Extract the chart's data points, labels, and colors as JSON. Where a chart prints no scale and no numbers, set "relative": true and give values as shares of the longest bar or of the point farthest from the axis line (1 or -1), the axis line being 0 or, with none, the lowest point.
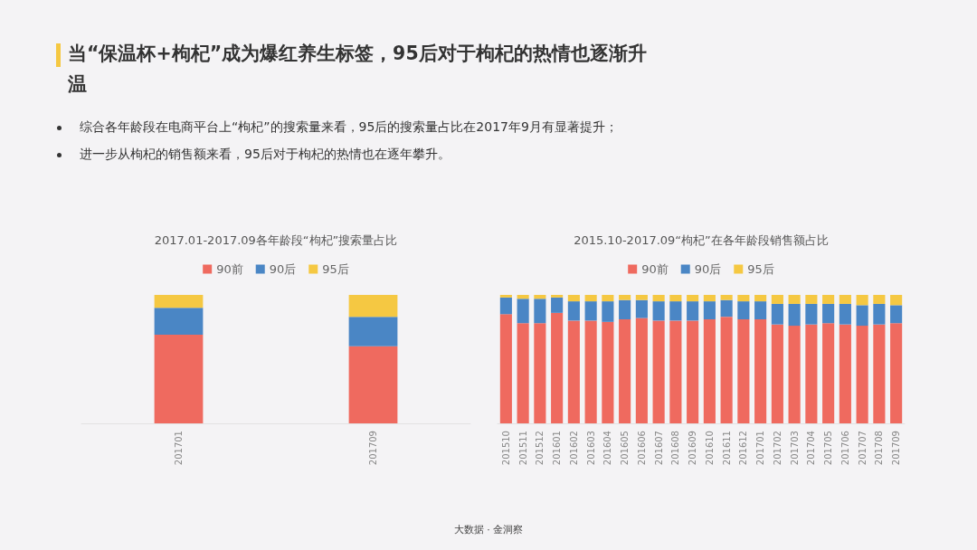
{
  "chart_data": [
    {
      "type": "other",
      "title": "当“保温杯+枸杞”成为爆红养生标签，95后对于枸杞的热情也逐渐升温",
      "annotations": [
        "综合各年龄段在电商平台上“枸杞”的搜索量来看，95后的搜索量占比在2017年9月有显著提升；",
        "进一步从枸杞的销售额来看，95后对于枸杞的热情也在逐年攀升。",
        "大数据 · 金洞察"
      ]
    },
    {
      "type": "bar",
      "title": "2017.01-2017.09各年龄段“枸杞”搜索量占比",
      "relative": true,
      "stacked": true,
      "legend": "top",
      "tick_labels": "x",
      "categories": [
        "201701",
        "201709"
      ],
      "series": [
        {
          "name": "90前",
          "color": "#ef6a5f",
          "values": [
            0.69,
            0.6
          ]
        },
        {
          "name": "90后",
          "color": "#4a86c5",
          "values": [
            0.21,
            0.23
          ]
        },
        {
          "name": "95后",
          "color": "#f5c842",
          "values": [
            0.1,
            0.17
          ]
        }
      ]
    },
    {
      "type": "bar",
      "title": "2015.10-2017.09“枸杞”在各年龄段销售额占比",
      "relative": true,
      "stacked": true,
      "legend": "top",
      "tick_labels": "x",
      "categories": [
        "201510",
        "201511",
        "201512",
        "201601",
        "201602",
        "201603",
        "201604",
        "201605",
        "201606",
        "201607",
        "201608",
        "201609",
        "201610",
        "201611",
        "201612",
        "201701",
        "201702",
        "201703",
        "201704",
        "201705",
        "201706",
        "201707",
        "201708",
        "201709"
      ],
      "series": [
        {
          "name": "90前",
          "color": "#ef6a5f",
          "values": [
            0.85,
            0.78,
            0.78,
            0.86,
            0.8,
            0.8,
            0.79,
            0.81,
            0.82,
            0.8,
            0.8,
            0.8,
            0.81,
            0.83,
            0.81,
            0.81,
            0.77,
            0.76,
            0.77,
            0.78,
            0.77,
            0.76,
            0.77,
            0.78
          ]
        },
        {
          "name": "90后",
          "color": "#4a86c5",
          "values": [
            0.13,
            0.19,
            0.19,
            0.12,
            0.15,
            0.15,
            0.16,
            0.15,
            0.14,
            0.15,
            0.15,
            0.15,
            0.14,
            0.13,
            0.14,
            0.14,
            0.16,
            0.17,
            0.16,
            0.15,
            0.16,
            0.16,
            0.16,
            0.14
          ]
        },
        {
          "name": "95后",
          "color": "#f5c842",
          "values": [
            0.02,
            0.03,
            0.03,
            0.02,
            0.05,
            0.05,
            0.05,
            0.04,
            0.04,
            0.05,
            0.05,
            0.05,
            0.05,
            0.04,
            0.05,
            0.05,
            0.07,
            0.07,
            0.07,
            0.07,
            0.07,
            0.08,
            0.07,
            0.08
          ]
        }
      ]
    }
  ]
}
